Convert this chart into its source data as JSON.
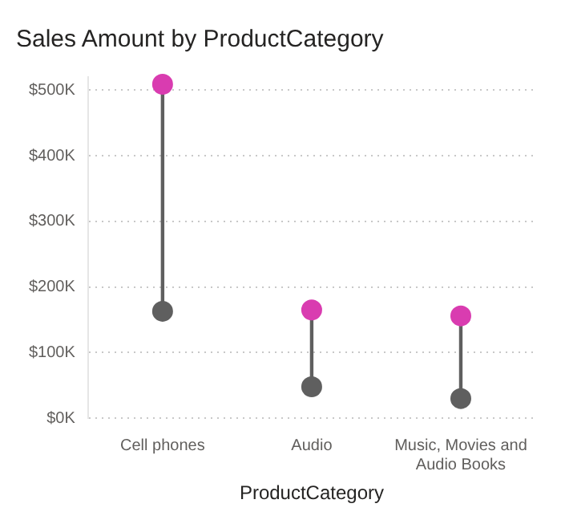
{
  "chart_data": {
    "type": "scatter",
    "title": "Sales Amount by ProductCategory",
    "xlabel": "ProductCategory",
    "categories": [
      "Cell phones",
      "Audio",
      "Music, Movies and Audio Books"
    ],
    "series": [
      {
        "color": "#5f5f5f",
        "x": [
          "Cell phones",
          "Audio",
          "Music, Movies and Audio Books"
        ],
        "values": [
          163,
          48,
          30
        ]
      },
      {
        "color": "#d93cb0",
        "x": [
          "Cell phones",
          "Audio",
          "Music, Movies and Audio Books"
        ],
        "values": [
          509,
          165,
          156
        ]
      }
    ],
    "ylim": [
      0,
      520
    ],
    "yticks": [
      {
        "value": 0,
        "label": "$0K"
      },
      {
        "value": 100,
        "label": "$100K"
      },
      {
        "value": 200,
        "label": "$200K"
      },
      {
        "value": 300,
        "label": "$300K"
      },
      {
        "value": 400,
        "label": "$400K"
      },
      {
        "value": 500,
        "label": "$500K"
      }
    ],
    "grid": "y",
    "legend": false,
    "marker": "circle"
  }
}
